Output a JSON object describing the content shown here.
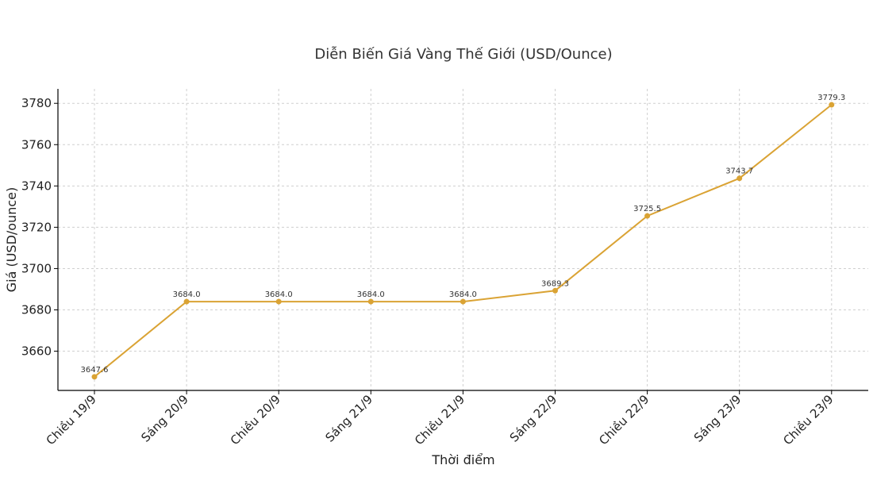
{
  "chart_data": {
    "type": "line",
    "title": "Diễn Biến Giá Vàng Thế Giới (USD/Ounce)",
    "xlabel": "Thời điểm",
    "ylabel": "Giá (USD/ounce)",
    "categories": [
      "Chiều 19/9",
      "Sáng 20/9",
      "Chiều 20/9",
      "Sáng 21/9",
      "Chiều 21/9",
      "Sáng 22/9",
      "Chiều 22/9",
      "Sáng 23/9",
      "Chiều 23/9"
    ],
    "values": [
      3647.6,
      3684.0,
      3684.0,
      3684.0,
      3684.0,
      3689.3,
      3725.5,
      3743.7,
      3779.3
    ],
    "data_labels": [
      "3647.6",
      "3684.0",
      "3684.0",
      "3684.0",
      "3684.0",
      "3689.3",
      "3725.5",
      "3743.7",
      "3779.3"
    ],
    "yticks": [
      3660,
      3680,
      3700,
      3720,
      3740,
      3760,
      3780
    ],
    "ylim": [
      3641,
      3787
    ],
    "grid": true,
    "legend": "none",
    "line_color": "#DAA334",
    "marker_color": "#DAA334"
  }
}
